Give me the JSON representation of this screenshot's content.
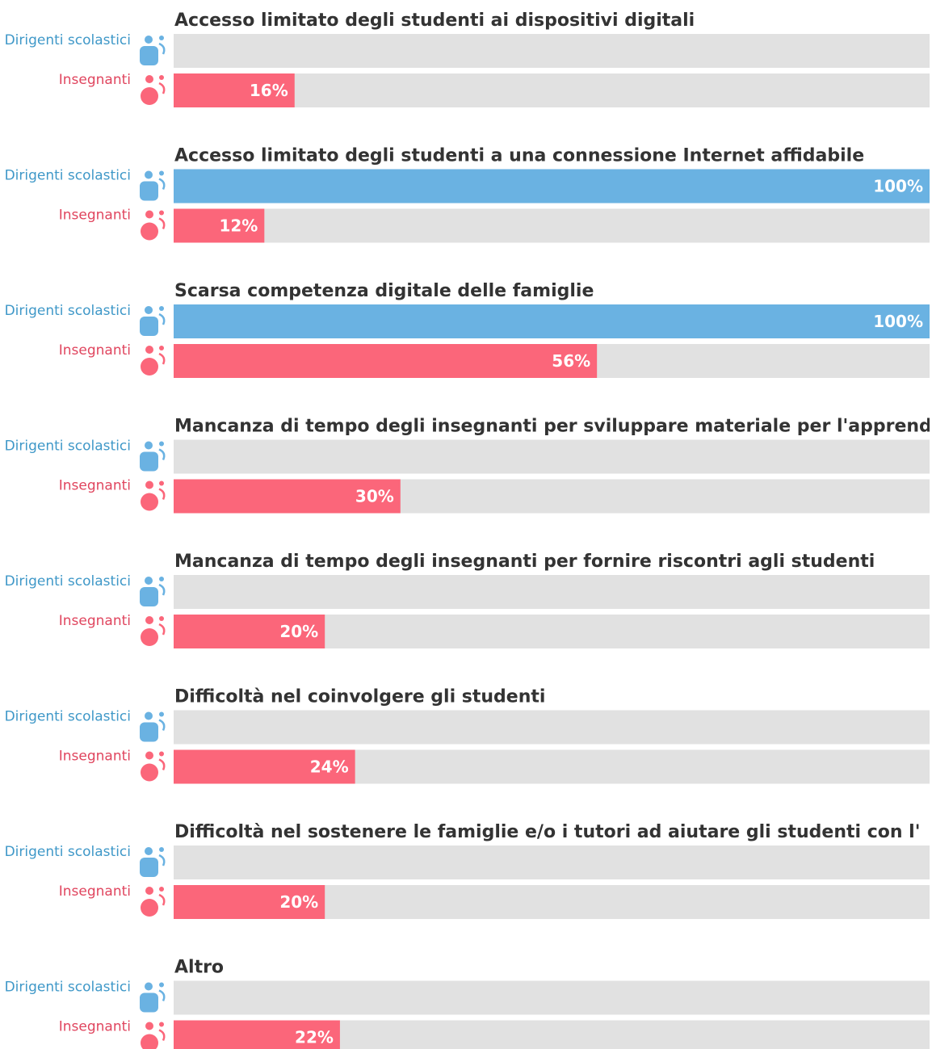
{
  "chart_data": {
    "type": "bar",
    "categories": [
      "Accesso limitato degli studenti ai dispositivi digitali",
      "Accesso limitato degli studenti a una connessione Internet affidabile",
      "Scarsa competenza digitale delle famiglie",
      "Mancanza di tempo degli insegnanti per sviluppare materiale per l'apprend",
      "Mancanza di tempo degli insegnanti per fornire riscontri agli studenti",
      "Difficoltà nel coinvolgere gli studenti",
      "Difficoltà nel sostenere le famiglie e/o i tutori ad aiutare gli studenti con l'",
      "Altro"
    ],
    "xlim": [
      0,
      100
    ],
    "series": [
      {
        "name": "Dirigenti scolastici",
        "color": "#6ab2e2",
        "values": [
          null,
          100,
          100,
          null,
          null,
          null,
          null,
          null
        ],
        "value_labels": [
          null,
          "100%",
          "100%",
          null,
          null,
          null,
          null,
          null
        ]
      },
      {
        "name": "Insegnanti",
        "color": "#fb667a",
        "values": [
          16,
          12,
          56,
          30,
          20,
          24,
          20,
          22
        ],
        "value_labels": [
          "16%",
          "12%",
          "56%",
          "30%",
          "20%",
          "24%",
          "20%",
          "22%"
        ]
      }
    ]
  }
}
